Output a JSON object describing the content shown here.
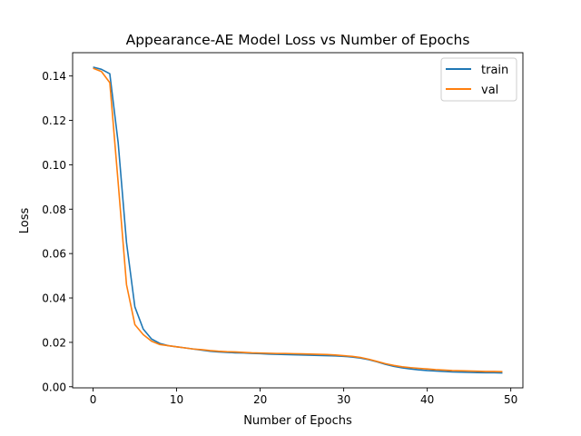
{
  "chart_data": {
    "type": "line",
    "title": "Appearance-AE Model Loss vs Number of Epochs",
    "xlabel": "Number of Epochs",
    "ylabel": "Loss",
    "xlim": [
      -2.45,
      51.45
    ],
    "ylim": [
      -0.0005,
      0.1505
    ],
    "xticks": [
      0,
      10,
      20,
      30,
      40,
      50
    ],
    "xtick_labels": [
      "0",
      "10",
      "20",
      "30",
      "40",
      "50"
    ],
    "yticks": [
      0.0,
      0.02,
      0.04,
      0.06,
      0.08,
      0.1,
      0.12,
      0.14
    ],
    "ytick_labels": [
      "0.00",
      "0.02",
      "0.04",
      "0.06",
      "0.08",
      "0.10",
      "0.12",
      "0.14"
    ],
    "grid": false,
    "legend_position": "top-right",
    "x": [
      0,
      1,
      2,
      3,
      4,
      5,
      6,
      7,
      8,
      9,
      10,
      11,
      12,
      13,
      14,
      15,
      16,
      17,
      18,
      19,
      20,
      21,
      22,
      23,
      24,
      25,
      26,
      27,
      28,
      29,
      30,
      31,
      32,
      33,
      34,
      35,
      36,
      37,
      38,
      39,
      40,
      41,
      42,
      43,
      44,
      45,
      46,
      47,
      48,
      49
    ],
    "series": [
      {
        "name": "train",
        "color": "#1f77b4",
        "values": [
          0.144,
          0.143,
          0.141,
          0.11,
          0.065,
          0.036,
          0.026,
          0.0215,
          0.0195,
          0.0185,
          0.018,
          0.0175,
          0.017,
          0.0165,
          0.016,
          0.0157,
          0.0155,
          0.0153,
          0.0152,
          0.015,
          0.0149,
          0.0147,
          0.0146,
          0.0145,
          0.0144,
          0.0143,
          0.0142,
          0.0141,
          0.014,
          0.0139,
          0.0137,
          0.0134,
          0.0129,
          0.0122,
          0.0112,
          0.0101,
          0.0092,
          0.0085,
          0.008,
          0.0076,
          0.0073,
          0.0071,
          0.0069,
          0.0067,
          0.0066,
          0.0065,
          0.0064,
          0.0063,
          0.0063,
          0.0062
        ]
      },
      {
        "name": "val",
        "color": "#ff7f0e",
        "values": [
          0.1435,
          0.142,
          0.137,
          0.092,
          0.046,
          0.028,
          0.0235,
          0.0205,
          0.019,
          0.0185,
          0.018,
          0.0175,
          0.017,
          0.0167,
          0.0163,
          0.016,
          0.0158,
          0.0157,
          0.0155,
          0.0153,
          0.0152,
          0.0151,
          0.015,
          0.015,
          0.0149,
          0.0148,
          0.0147,
          0.0146,
          0.0145,
          0.0143,
          0.014,
          0.0137,
          0.0132,
          0.0124,
          0.0114,
          0.0104,
          0.0096,
          0.009,
          0.0086,
          0.0083,
          0.008,
          0.0077,
          0.0075,
          0.0073,
          0.0072,
          0.0071,
          0.007,
          0.0069,
          0.0069,
          0.0068
        ]
      }
    ]
  }
}
